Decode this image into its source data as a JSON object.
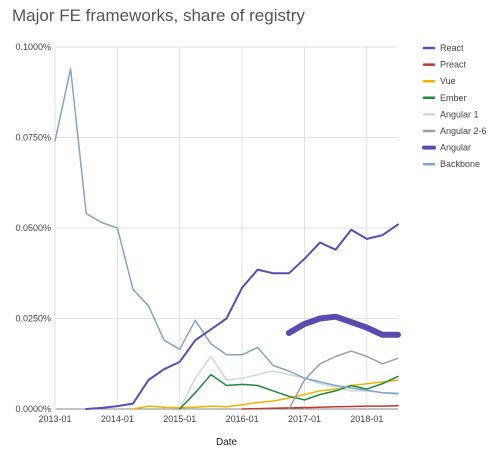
{
  "chart_data": {
    "type": "line",
    "title": "Major FE frameworks, share of registry",
    "xlabel": "Date",
    "ylabel": "",
    "x": [
      "2013-01",
      "2013-04",
      "2013-07",
      "2013-10",
      "2014-01",
      "2014-04",
      "2014-07",
      "2014-10",
      "2015-01",
      "2015-04",
      "2015-07",
      "2015-10",
      "2016-01",
      "2016-04",
      "2016-07",
      "2016-10",
      "2017-01",
      "2017-04",
      "2017-07",
      "2017-10",
      "2018-01",
      "2018-04",
      "2018-07"
    ],
    "xticks": [
      "2013-01",
      "2014-01",
      "2015-01",
      "2016-01",
      "2017-01",
      "2018-01"
    ],
    "yticks": [
      "0.0000%",
      "0.0250%",
      "0.0500%",
      "0.0750%",
      "0.1000%"
    ],
    "ylim": [
      0,
      0.1
    ],
    "grid": true,
    "legend_position": "right",
    "series": [
      {
        "name": "React",
        "color": "#5b4db5",
        "width": 2,
        "values": [
          null,
          null,
          0,
          0.0003,
          0.0008,
          0.0015,
          0.008,
          0.011,
          0.013,
          0.019,
          0.022,
          0.025,
          0.0335,
          0.0385,
          0.0375,
          0.0375,
          0.0415,
          0.046,
          0.044,
          0.0495,
          0.047,
          0.048,
          0.051
        ]
      },
      {
        "name": "Preact",
        "color": "#c0392b",
        "width": 1.5,
        "values": [
          null,
          null,
          null,
          null,
          null,
          null,
          null,
          null,
          null,
          null,
          null,
          null,
          0,
          0.0001,
          0.0002,
          0.0003,
          0.0004,
          0.0005,
          0.0006,
          0.0007,
          0.0008,
          0.0008,
          0.0009
        ]
      },
      {
        "name": "Vue",
        "color": "#f0b400",
        "width": 1.5,
        "values": [
          null,
          null,
          null,
          null,
          null,
          0,
          0.0008,
          0.0005,
          0.0004,
          0.0005,
          0.0008,
          0.0006,
          0.0012,
          0.0018,
          0.0022,
          0.003,
          0.004,
          0.005,
          0.0055,
          0.0065,
          0.007,
          0.0075,
          0.008
        ]
      },
      {
        "name": "Ember",
        "color": "#1e8a3a",
        "width": 1.5,
        "values": [
          null,
          null,
          null,
          null,
          null,
          null,
          null,
          null,
          0,
          0.0045,
          0.0095,
          0.0065,
          0.0068,
          0.0065,
          0.005,
          0.0035,
          0.0025,
          0.004,
          0.005,
          0.0065,
          0.0055,
          0.007,
          0.009
        ]
      },
      {
        "name": "Angular 1",
        "color": "#cfd6e0",
        "width": 1.5,
        "values": [
          null,
          null,
          null,
          null,
          null,
          null,
          null,
          null,
          0,
          0.0085,
          0.0145,
          0.008,
          0.0085,
          0.0095,
          0.0105,
          0.0095,
          0.0085,
          0.007,
          0.006,
          0.005,
          0.005,
          0.0045,
          0.004
        ]
      },
      {
        "name": "Angular 2-6",
        "color": "#9aa0a8",
        "width": 1.5,
        "values": [
          null,
          null,
          null,
          null,
          null,
          null,
          null,
          null,
          null,
          null,
          null,
          null,
          null,
          null,
          null,
          0,
          0.008,
          0.0125,
          0.0145,
          0.016,
          0.0145,
          0.0125,
          0.014
        ]
      },
      {
        "name": "Angular",
        "color": "#5a4bb0",
        "width": 6,
        "values": [
          null,
          null,
          null,
          null,
          null,
          null,
          null,
          null,
          null,
          null,
          null,
          null,
          null,
          null,
          null,
          0.021,
          0.0235,
          0.025,
          0.0255,
          0.024,
          0.0225,
          0.0205,
          0.0205
        ]
      },
      {
        "name": "Backbone",
        "color": "#7fa6c8",
        "width": 1.5,
        "values": [
          0.074,
          0.094,
          0.054,
          0.0515,
          0.05,
          0.033,
          0.0285,
          0.019,
          0.0165,
          0.0245,
          0.018,
          0.015,
          0.015,
          0.017,
          0.012,
          0.0105,
          0.0085,
          0.0075,
          0.0065,
          0.0058,
          0.0052,
          0.0045,
          0.0043
        ]
      }
    ]
  }
}
